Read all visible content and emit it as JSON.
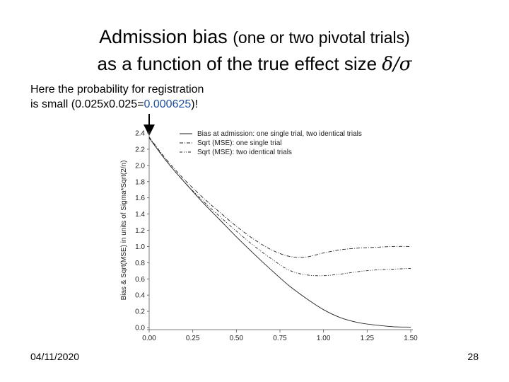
{
  "slide": {
    "title_main": "Admission bias",
    "title_paren": "(one or two pivotal trials)",
    "title_line2_prefix": "as a function of the true effect size ",
    "title_line2_symbol": "δ/σ",
    "note_line1": "Here the probability for registration",
    "note_line2_prefix": "is small (0.025x0.025=",
    "note_line2_value": "0.000625",
    "note_line2_suffix": ")!",
    "date": "04/11/2020",
    "page_number": "28"
  },
  "chart_data": {
    "type": "line",
    "title": "",
    "xlabel": "",
    "ylabel": "Bias & Sqrt(MSE) in units of Sigma*Sqrt(2/n)",
    "xlim": [
      0.0,
      1.5
    ],
    "ylim": [
      0.0,
      2.4
    ],
    "xticks": [
      "0.00",
      "0.25",
      "0.50",
      "0.75",
      "1.00",
      "1.25",
      "1.50"
    ],
    "yticks": [
      "0.0",
      "0.2",
      "0.4",
      "0.6",
      "0.8",
      "1.0",
      "1.2",
      "1.4",
      "1.6",
      "1.8",
      "2.0",
      "2.2",
      "2.4"
    ],
    "legend_position": "top-right",
    "x": [
      0.0,
      0.1,
      0.2,
      0.3,
      0.4,
      0.5,
      0.6,
      0.7,
      0.8,
      0.9,
      1.0,
      1.1,
      1.2,
      1.3,
      1.4,
      1.5
    ],
    "series": [
      {
        "name": "Bias at admission: one single trial, two identical trials",
        "style": "solid",
        "values": [
          2.34,
          2.05,
          1.8,
          1.56,
          1.34,
          1.12,
          0.91,
          0.71,
          0.52,
          0.36,
          0.22,
          0.12,
          0.06,
          0.03,
          0.01,
          0.005
        ]
      },
      {
        "name": "Sqrt (MSE):  one single trial",
        "style": "dashdot",
        "values": [
          2.35,
          2.07,
          1.83,
          1.62,
          1.43,
          1.25,
          1.09,
          0.96,
          0.88,
          0.87,
          0.92,
          0.96,
          0.98,
          0.99,
          1.0,
          1.0
        ]
      },
      {
        "name": "Sqrt (MSE):  two identical trials",
        "style": "dashdotdot",
        "values": [
          2.34,
          2.05,
          1.8,
          1.58,
          1.38,
          1.19,
          1.01,
          0.85,
          0.71,
          0.65,
          0.64,
          0.66,
          0.69,
          0.71,
          0.72,
          0.73
        ]
      }
    ]
  }
}
